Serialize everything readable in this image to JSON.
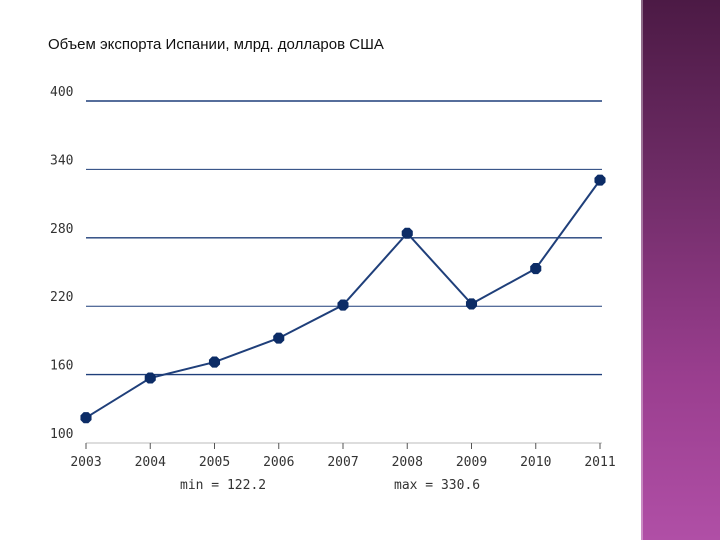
{
  "slide": {
    "title": "Объем экспорта Испании, млрд. долларов США"
  },
  "colors": {
    "line": "#1f3f7a",
    "marker": "#0c2c66",
    "grid": "#1f3f7a",
    "side_band": "#8a3580"
  },
  "chart_data": {
    "type": "line",
    "x": [
      "2003",
      "2004",
      "2005",
      "2006",
      "2007",
      "2008",
      "2009",
      "2010",
      "2011"
    ],
    "series": [
      {
        "values": [
          122.2,
          157,
          171,
          192,
          221,
          284,
          222,
          253,
          330.6
        ]
      }
    ],
    "ylim": [
      100,
      400
    ],
    "yticks": [
      100,
      160,
      220,
      280,
      340,
      400
    ],
    "grid": true,
    "stats": {
      "min_label": "min = 122.2",
      "max_label": "max = 330.6"
    }
  }
}
